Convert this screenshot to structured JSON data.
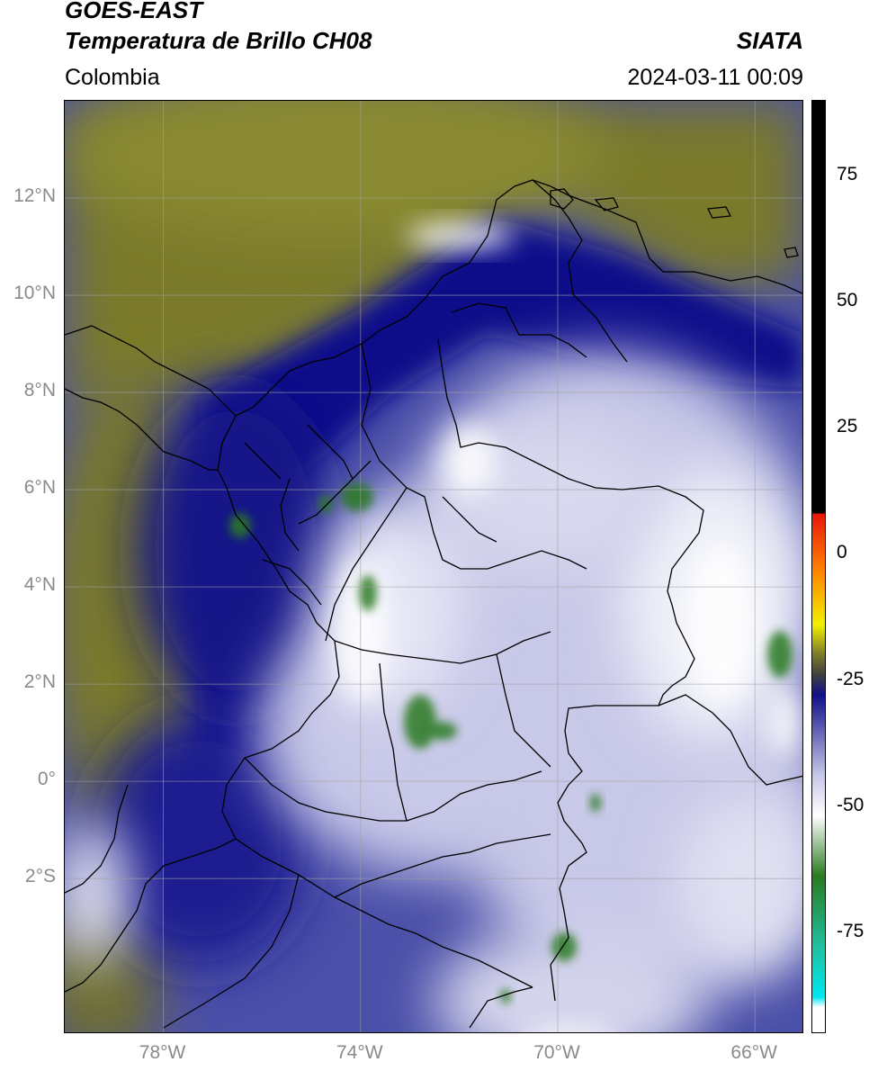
{
  "header": {
    "satellite": "GOES-EAST",
    "product": "Temperatura de Brillo CH08",
    "region": "Colombia",
    "agency": "SIATA",
    "datetime": "2024-03-11 00:09"
  },
  "axes": {
    "lat_labels": [
      "12°N",
      "10°N",
      "8°N",
      "6°N",
      "4°N",
      "2°N",
      "0°",
      "2°S"
    ],
    "lon_labels": [
      "78°W",
      "74°W",
      "70°W",
      "66°W"
    ],
    "lat_values": [
      12,
      10,
      8,
      6,
      4,
      2,
      0,
      -2
    ],
    "lon_values": [
      -78,
      -74,
      -70,
      -66
    ],
    "extent": {
      "lon_min": -80,
      "lon_max": -65.0,
      "lat_min": -5.2,
      "lat_max": 14.0
    }
  },
  "colorbar": {
    "ticks": [
      "75",
      "50",
      "25",
      "0",
      "-25",
      "-50",
      "-75"
    ],
    "tick_values": [
      75,
      50,
      25,
      0,
      -25,
      -50,
      -75
    ],
    "range": [
      -95,
      90
    ],
    "colors": {
      "warm_black": "#000000",
      "red": "#e8150a",
      "orange": "#ff8a00",
      "yellow": "#f0f000",
      "olive": "#7a7a2a",
      "navy": "#10108a",
      "lavender": "#c8c8e8",
      "white": "#ffffff",
      "green": "#2a7a20",
      "teal": "#20c0a0",
      "cyan": "#00e8f0"
    }
  }
}
